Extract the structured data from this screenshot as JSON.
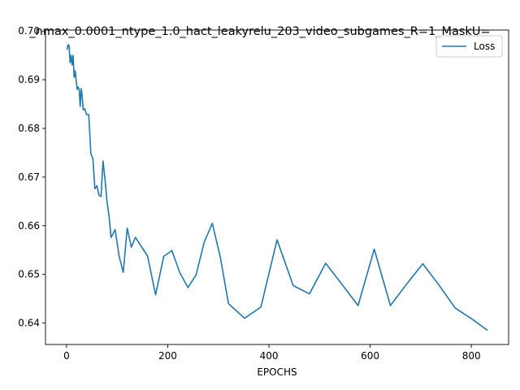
{
  "chart_data": {
    "type": "line",
    "title": "_nmax_0.0001_ntype_1.0_hact_leakyrelu_203_video_subgames_R=1_MaskU=",
    "xlabel": "EPOCHS",
    "ylabel": "",
    "xlim": [
      -41.6,
      873.6
    ],
    "ylim": [
      0.6356,
      0.7002
    ],
    "xticks": [
      0,
      200,
      400,
      600,
      800
    ],
    "yticks": [
      0.64,
      0.65,
      0.66,
      0.67,
      0.68,
      0.69,
      0.7
    ],
    "xtick_labels": [
      "0",
      "200",
      "400",
      "600",
      "800"
    ],
    "ytick_labels": [
      "0.64",
      "0.65",
      "0.66",
      "0.67",
      "0.68",
      "0.69",
      "0.70"
    ],
    "grid": false,
    "legend_position": "top-right",
    "series": [
      {
        "name": "Loss",
        "color": "#1f77b4",
        "x": [
          1,
          3,
          5,
          7,
          9,
          11,
          13,
          15,
          17,
          19,
          21,
          23,
          25,
          27,
          29,
          31,
          33,
          36,
          40,
          44,
          48,
          52,
          56,
          60,
          64,
          68,
          72,
          76,
          80,
          84,
          88,
          96,
          104,
          112,
          120,
          128,
          136,
          160,
          176,
          192,
          208,
          224,
          240,
          256,
          272,
          288,
          304,
          320,
          352,
          384,
          416,
          448,
          480,
          512,
          544,
          576,
          608,
          640,
          672,
          704,
          736,
          768,
          800,
          832
        ],
        "y": [
          0.6962,
          0.6972,
          0.697,
          0.6935,
          0.695,
          0.693,
          0.695,
          0.6905,
          0.6918,
          0.69,
          0.688,
          0.6885,
          0.688,
          0.6845,
          0.6882,
          0.6865,
          0.6838,
          0.684,
          0.6828,
          0.6828,
          0.6748,
          0.6738,
          0.6676,
          0.6682,
          0.6663,
          0.666,
          0.6733,
          0.6696,
          0.665,
          0.662,
          0.6576,
          0.6592,
          0.6537,
          0.6504,
          0.6595,
          0.6556,
          0.6576,
          0.6538,
          0.6458,
          0.6537,
          0.6549,
          0.6503,
          0.6473,
          0.6499,
          0.6566,
          0.6605,
          0.6535,
          0.644,
          0.641,
          0.6433,
          0.6571,
          0.6477,
          0.646,
          0.6523,
          0.648,
          0.6436,
          0.6552,
          0.6436,
          0.648,
          0.6522,
          0.6478,
          0.6431,
          0.6409,
          0.6385
        ]
      }
    ]
  }
}
